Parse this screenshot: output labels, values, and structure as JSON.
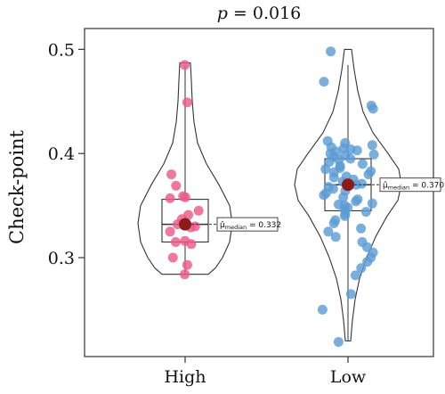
{
  "chart_data": {
    "type": "violin-box-scatter",
    "title_italic": "p",
    "title_rest": " = 0.016",
    "ylabel": "Check-point",
    "ylim": [
      0.205,
      0.52
    ],
    "yticks": [
      0.3,
      0.4,
      0.5
    ],
    "ytick_labels": [
      "0.3",
      "0.4",
      "0.5"
    ],
    "grid": false,
    "groups": [
      {
        "name": "High",
        "color": "#EC5A87",
        "median": 0.332,
        "median_label_prefix": "μ̂",
        "median_label_sub": "median",
        "median_label_value": " = 0.332",
        "q1": 0.315,
        "q3": 0.356,
        "whisker_low": 0.285,
        "whisker_high": 0.485,
        "points": [
          0.485,
          0.449,
          0.38,
          0.369,
          0.359,
          0.358,
          0.357,
          0.345,
          0.341,
          0.337,
          0.332,
          0.33,
          0.329,
          0.325,
          0.316,
          0.315,
          0.313,
          0.3,
          0.293,
          0.284
        ]
      },
      {
        "name": "Low",
        "color": "#5D9CD4",
        "median": 0.37,
        "median_label_prefix": "μ̂",
        "median_label_sub": "median",
        "median_label_value": " = 0.370",
        "q1": 0.345,
        "q3": 0.395,
        "whisker_low": 0.22,
        "whisker_high": 0.485,
        "points": [
          0.498,
          0.469,
          0.446,
          0.443,
          0.412,
          0.41,
          0.408,
          0.406,
          0.405,
          0.404,
          0.403,
          0.402,
          0.4,
          0.399,
          0.398,
          0.397,
          0.395,
          0.394,
          0.392,
          0.39,
          0.388,
          0.386,
          0.385,
          0.383,
          0.382,
          0.38,
          0.378,
          0.377,
          0.375,
          0.373,
          0.371,
          0.37,
          0.368,
          0.366,
          0.364,
          0.362,
          0.36,
          0.358,
          0.356,
          0.354,
          0.352,
          0.351,
          0.35,
          0.348,
          0.346,
          0.344,
          0.342,
          0.34,
          0.336,
          0.333,
          0.328,
          0.325,
          0.32,
          0.315,
          0.31,
          0.305,
          0.3,
          0.296,
          0.29,
          0.283,
          0.265,
          0.25,
          0.219
        ]
      }
    ],
    "median_marker_color": "#8B1A1A"
  }
}
